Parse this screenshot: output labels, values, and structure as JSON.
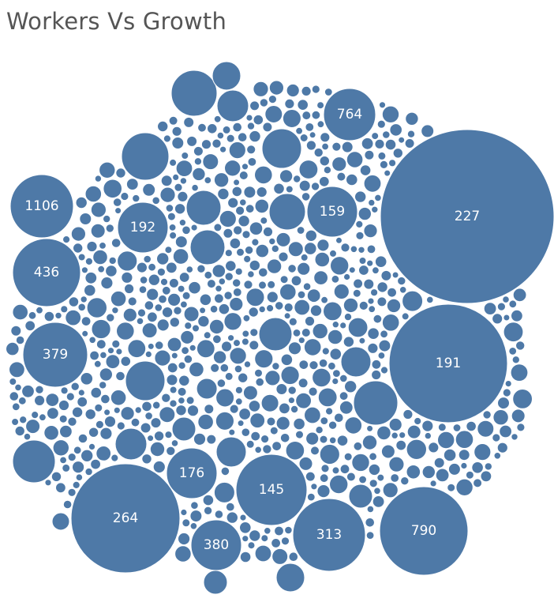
{
  "title": "Workers Vs Growth",
  "colors": {
    "bubble": "#4e79a7",
    "title": "#555555",
    "label": "#ffffff"
  },
  "chart_data": {
    "type": "packed-bubble",
    "title": "Workers Vs Growth",
    "fill": "#4e79a7",
    "labeled_bubbles": [
      {
        "label": "227",
        "size_rank": 1
      },
      {
        "label": "191",
        "size_rank": 2
      },
      {
        "label": "264",
        "size_rank": 3
      },
      {
        "label": "790",
        "size_rank": 4
      },
      {
        "label": "145",
        "size_rank": 5
      },
      {
        "label": "313",
        "size_rank": 6
      },
      {
        "label": "436",
        "size_rank": 7
      },
      {
        "label": "379",
        "size_rank": 8
      },
      {
        "label": "1106",
        "size_rank": 9
      },
      {
        "label": "764",
        "size_rank": 10
      },
      {
        "label": "192",
        "size_rank": 11
      },
      {
        "label": "176",
        "size_rank": 12
      },
      {
        "label": "159",
        "size_rank": 13
      },
      {
        "label": "380",
        "size_rank": 14
      }
    ],
    "unlabeled_bubble_count": 700
  }
}
